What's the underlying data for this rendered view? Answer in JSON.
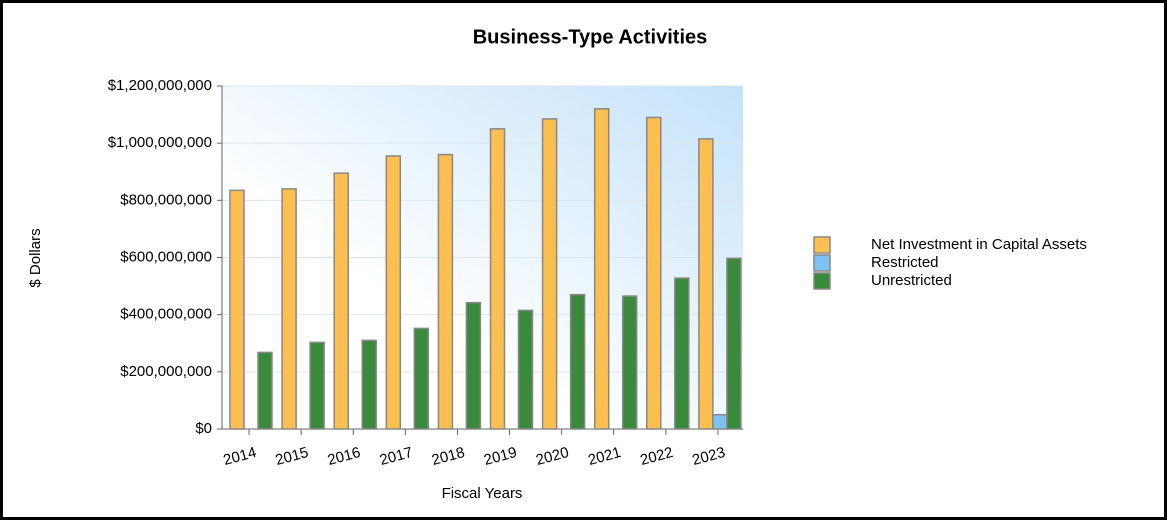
{
  "chart_data": {
    "type": "bar",
    "title": "Business-Type Activities",
    "xlabel": "Fiscal Years",
    "ylabel": "$ Dollars",
    "categories": [
      "2014",
      "2015",
      "2016",
      "2017",
      "2018",
      "2019",
      "2020",
      "2021",
      "2022",
      "2023"
    ],
    "series": [
      {
        "name": "Net Investment in Capital Assets",
        "color": "#fdbf4f",
        "values": [
          835000000,
          840000000,
          895000000,
          955000000,
          960000000,
          1050000000,
          1085000000,
          1120000000,
          1090000000,
          1015000000
        ]
      },
      {
        "name": "Restricted",
        "color": "#7cc3f3",
        "values": [
          0,
          0,
          0,
          0,
          0,
          0,
          0,
          0,
          0,
          50000000
        ]
      },
      {
        "name": "Unrestricted",
        "color": "#3a8a3c",
        "values": [
          268000000,
          303000000,
          310000000,
          352000000,
          442000000,
          415000000,
          470000000,
          465000000,
          528000000,
          597000000
        ]
      }
    ],
    "ylim": [
      0,
      1200000000
    ],
    "yticks": [
      {
        "value": 0,
        "label": "$0"
      },
      {
        "value": 200000000,
        "label": "$200,000,000"
      },
      {
        "value": 400000000,
        "label": "$400,000,000"
      },
      {
        "value": 600000000,
        "label": "$600,000,000"
      },
      {
        "value": 800000000,
        "label": "$800,000,000"
      },
      {
        "value": 1000000000,
        "label": "$1,000,000,000"
      },
      {
        "value": 1200000000,
        "label": "$1,200,000,000"
      }
    ],
    "grid": true,
    "legend": "right"
  }
}
